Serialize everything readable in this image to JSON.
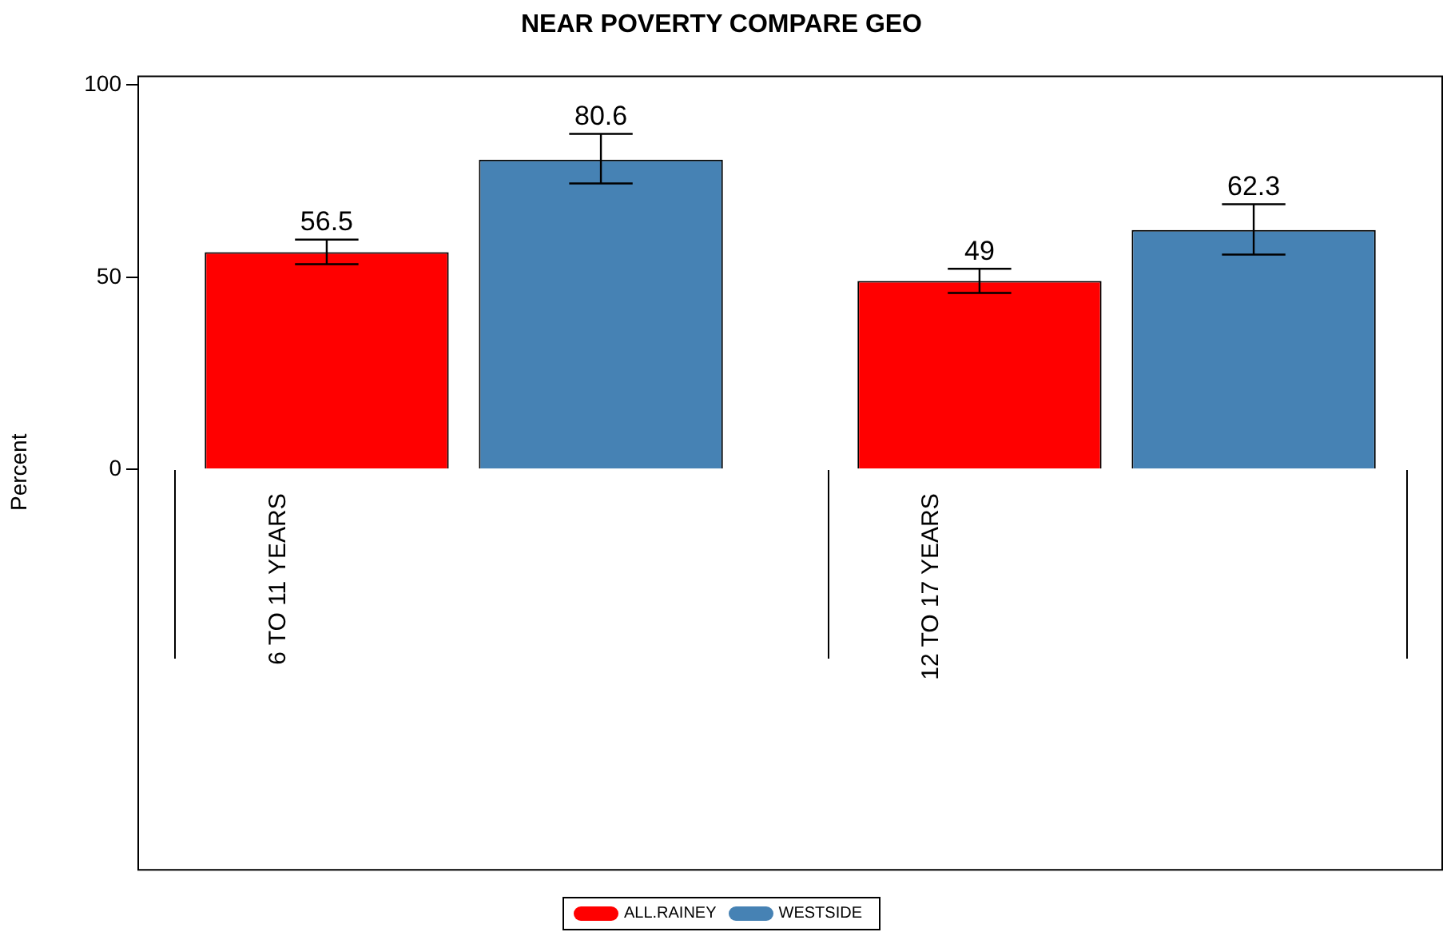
{
  "chart_data": {
    "type": "bar",
    "title": "NEAR POVERTY COMPARE GEO",
    "ylabel": "Percent",
    "categories": [
      "6 TO 11 YEARS",
      "12 TO 17 YEARS"
    ],
    "series": [
      {
        "name": "ALL.RAINEY",
        "color": "#ff0000",
        "values": [
          56.5,
          49
        ],
        "errors": [
          [
            53.4,
            59.8
          ],
          [
            45.9,
            52.2
          ]
        ]
      },
      {
        "name": "WESTSIDE",
        "color": "#4682b4",
        "values": [
          80.6,
          62.3
        ],
        "errors": [
          [
            74.4,
            87.3
          ],
          [
            55.9,
            69.0
          ]
        ]
      }
    ],
    "ylim": [
      -104,
      102.5
    ],
    "yticks": [
      0,
      50,
      100
    ],
    "grid": false,
    "legend": "bottom",
    "data_labels": true
  }
}
